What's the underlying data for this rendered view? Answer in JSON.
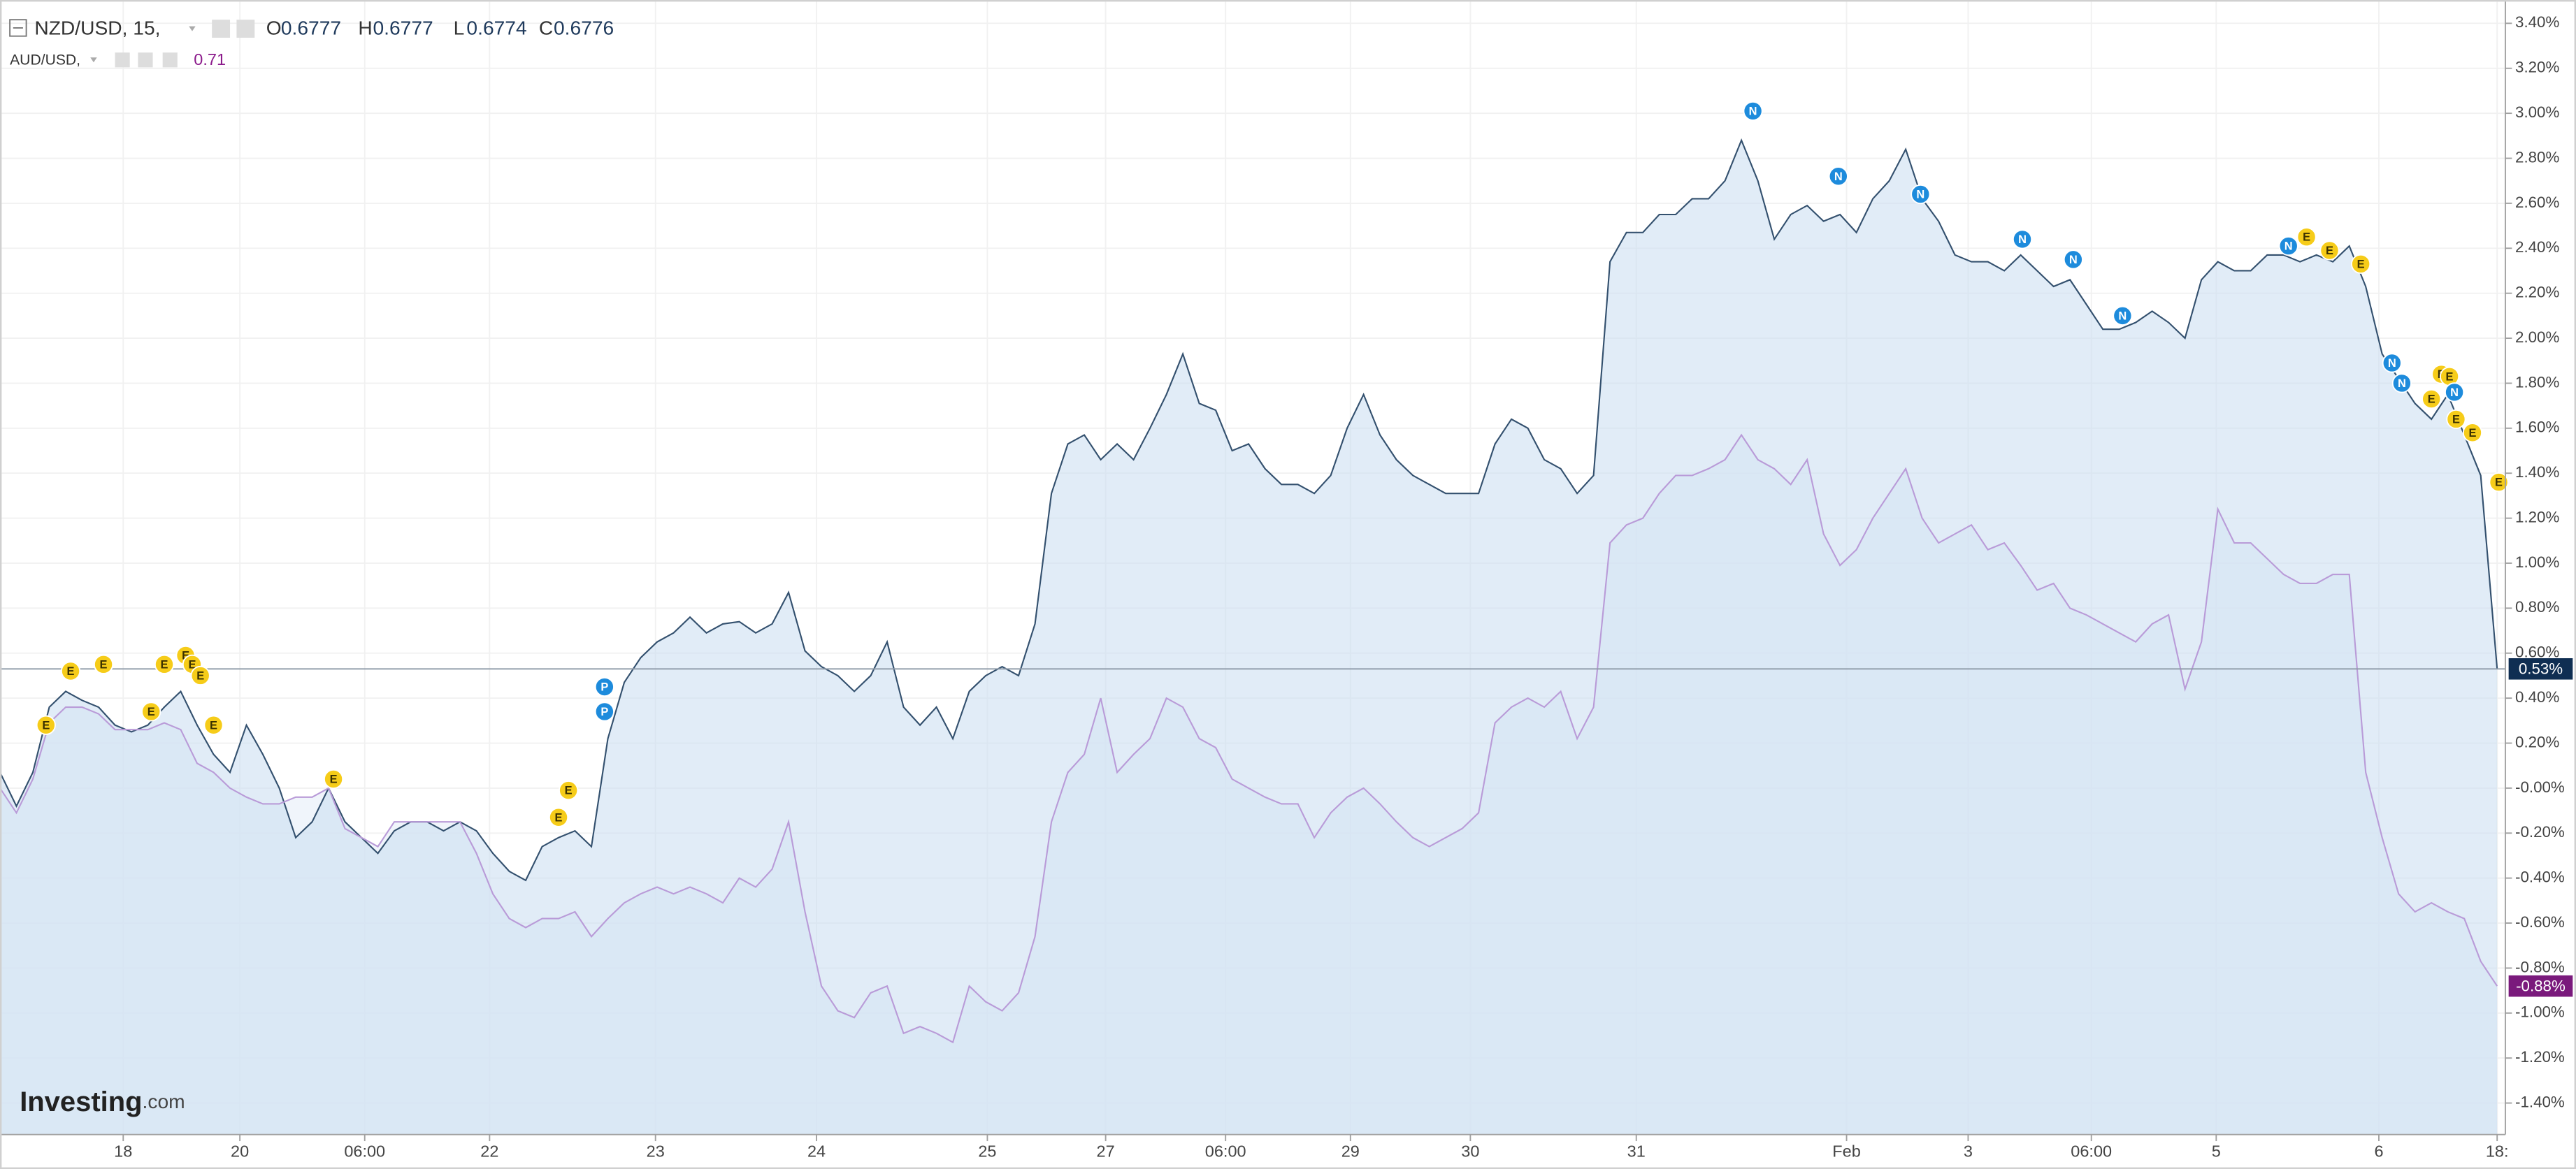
{
  "chart_data": {
    "type": "line",
    "header": {
      "ohlc": [
        {
          "key": "O",
          "value": 0.6777
        },
        {
          "key": "H",
          "value": 0.6777
        },
        {
          "key": "L",
          "value": 0.6774
        },
        {
          "key": "C",
          "value": 0.6776
        }
      ],
      "compare_value": 0.71
    },
    "logo_brand": "Investing",
    "logo_suffix": ".com",
    "x": [
      0,
      1,
      2,
      3,
      4,
      5,
      6,
      7,
      8,
      9,
      10,
      11,
      12,
      13,
      14,
      15,
      16,
      17,
      18,
      19,
      20,
      21,
      22,
      23,
      24,
      25,
      26,
      27,
      28,
      29,
      30,
      31,
      32,
      33,
      34,
      35,
      36,
      37,
      38,
      39,
      40,
      41,
      42,
      43,
      44,
      45,
      46,
      47,
      48,
      49,
      50,
      51,
      52,
      53,
      54,
      55,
      56,
      57,
      58,
      59,
      60,
      61,
      62,
      63,
      64,
      65,
      66,
      67,
      68,
      69,
      70,
      71,
      72,
      73,
      74,
      75,
      76,
      77,
      78,
      79,
      80,
      81,
      82,
      83,
      84,
      85,
      86,
      87,
      88,
      89,
      90,
      91,
      92,
      93,
      94,
      95,
      96,
      97,
      98,
      99,
      100,
      101,
      102,
      103,
      104,
      105,
      106,
      107,
      108,
      109,
      110,
      111,
      112,
      113,
      114,
      115,
      116,
      117,
      118,
      119,
      120,
      121,
      122,
      123,
      124,
      125,
      126,
      127,
      128,
      129,
      130,
      131,
      132,
      133,
      134,
      135,
      136,
      137,
      138,
      139,
      140,
      141,
      142,
      143,
      144,
      145,
      146,
      147,
      148,
      149,
      150,
      151,
      152
    ],
    "series": [
      {
        "name": "NZD/USD, 15,",
        "color": "#33506e",
        "fill": "#c9dcf0",
        "badge_color": "#0f2e52",
        "last_label": "0.53%",
        "values": [
          0.07,
          -0.08,
          0.07,
          0.36,
          0.43,
          0.39,
          0.36,
          0.28,
          0.25,
          0.28,
          0.36,
          0.43,
          0.28,
          0.15,
          0.07,
          0.28,
          0.15,
          0,
          -0.22,
          -0.15,
          0,
          -0.15,
          -0.22,
          -0.29,
          -0.19,
          -0.15,
          -0.15,
          -0.19,
          -0.15,
          -0.19,
          -0.29,
          -0.37,
          -0.41,
          -0.26,
          -0.22,
          -0.19,
          -0.26,
          0.22,
          0.47,
          0.58,
          0.65,
          0.69,
          0.76,
          0.69,
          0.73,
          0.74,
          0.69,
          0.73,
          0.87,
          0.61,
          0.54,
          0.5,
          0.43,
          0.5,
          0.65,
          0.36,
          0.28,
          0.36,
          0.22,
          0.43,
          0.5,
          0.54,
          0.5,
          0.73,
          1.31,
          1.53,
          1.57,
          1.46,
          1.53,
          1.46,
          1.6,
          1.75,
          1.93,
          1.71,
          1.68,
          1.5,
          1.53,
          1.42,
          1.35,
          1.35,
          1.31,
          1.39,
          1.6,
          1.75,
          1.57,
          1.46,
          1.39,
          1.35,
          1.31,
          1.31,
          1.31,
          1.53,
          1.64,
          1.6,
          1.46,
          1.42,
          1.31,
          1.39,
          2.34,
          2.47,
          2.47,
          2.55,
          2.55,
          2.62,
          2.62,
          2.7,
          2.88,
          2.7,
          2.44,
          2.55,
          2.59,
          2.52,
          2.55,
          2.47,
          2.62,
          2.7,
          2.84,
          2.62,
          2.52,
          2.37,
          2.34,
          2.34,
          2.3,
          2.37,
          2.3,
          2.23,
          2.26,
          2.15,
          2.04,
          2.04,
          2.07,
          2.12,
          2.07,
          2,
          2.26,
          2.34,
          2.3,
          2.3,
          2.37,
          2.37,
          2.34,
          2.37,
          2.34,
          2.41,
          2.23,
          1.93,
          1.82,
          1.71,
          1.64,
          1.75,
          1.57,
          1.39,
          0.53
        ]
      },
      {
        "name": "AUD/USD,",
        "color": "#b99bd8",
        "fill": "#e3edf8",
        "badge_color": "#7a1a7c",
        "last_label": "-0.88%",
        "values": [
          0,
          -0.11,
          0.04,
          0.29,
          0.36,
          0.36,
          0.33,
          0.26,
          0.26,
          0.26,
          0.29,
          0.26,
          0.11,
          0.07,
          0,
          -0.04,
          -0.07,
          -0.07,
          -0.04,
          -0.04,
          0,
          -0.18,
          -0.22,
          -0.26,
          -0.15,
          -0.15,
          -0.15,
          -0.15,
          -0.15,
          -0.29,
          -0.47,
          -0.58,
          -0.62,
          -0.58,
          -0.58,
          -0.55,
          -0.66,
          -0.58,
          -0.51,
          -0.47,
          -0.44,
          -0.47,
          -0.44,
          -0.47,
          -0.51,
          -0.4,
          -0.44,
          -0.36,
          -0.15,
          -0.55,
          -0.88,
          -0.99,
          -1.02,
          -0.91,
          -0.88,
          -1.09,
          -1.06,
          -1.09,
          -1.13,
          -0.88,
          -0.95,
          -0.99,
          -0.91,
          -0.66,
          -0.15,
          0.07,
          0.15,
          0.4,
          0.07,
          0.15,
          0.22,
          0.4,
          0.36,
          0.22,
          0.18,
          0.04,
          0,
          -0.04,
          -0.07,
          -0.07,
          -0.22,
          -0.11,
          -0.04,
          0,
          -0.07,
          -0.15,
          -0.22,
          -0.26,
          -0.22,
          -0.18,
          -0.11,
          0.29,
          0.36,
          0.4,
          0.36,
          0.43,
          0.22,
          0.36,
          1.09,
          1.17,
          1.2,
          1.31,
          1.39,
          1.39,
          1.42,
          1.46,
          1.57,
          1.46,
          1.42,
          1.35,
          1.46,
          1.13,
          0.99,
          1.06,
          1.2,
          1.31,
          1.42,
          1.2,
          1.09,
          1.13,
          1.17,
          1.06,
          1.09,
          0.99,
          0.88,
          0.91,
          0.8,
          0.77,
          0.73,
          0.69,
          0.65,
          0.73,
          0.77,
          0.44,
          0.65,
          1.24,
          1.09,
          1.09,
          1.02,
          0.95,
          0.91,
          0.91,
          0.95,
          0.95,
          0.07,
          -0.22,
          -0.47,
          -0.55,
          -0.51,
          -0.55,
          -0.58,
          -0.77,
          -0.88
        ]
      }
    ],
    "markers": [
      {
        "label": "E",
        "x": 2.8,
        "y": 0.28
      },
      {
        "label": "E",
        "x": 4.3,
        "y": 0.52
      },
      {
        "label": "E",
        "x": 6.3,
        "y": 0.55
      },
      {
        "label": "E",
        "x": 9.2,
        "y": 0.34
      },
      {
        "label": "E",
        "x": 10.0,
        "y": 0.55
      },
      {
        "label": "E",
        "x": 11.3,
        "y": 0.59
      },
      {
        "label": "E",
        "x": 11.7,
        "y": 0.55
      },
      {
        "label": "E",
        "x": 12.2,
        "y": 0.5
      },
      {
        "label": "E",
        "x": 13.0,
        "y": 0.28
      },
      {
        "label": "E",
        "x": 20.3,
        "y": 0.04
      },
      {
        "label": "E",
        "x": 34.0,
        "y": -0.13
      },
      {
        "label": "E",
        "x": 34.6,
        "y": -0.01
      },
      {
        "label": "P",
        "x": 36.8,
        "y": 0.45
      },
      {
        "label": "P",
        "x": 36.8,
        "y": 0.34
      },
      {
        "label": "N",
        "x": 106.7,
        "y": 3.01
      },
      {
        "label": "N",
        "x": 111.9,
        "y": 2.72
      },
      {
        "label": "N",
        "x": 116.9,
        "y": 2.64
      },
      {
        "label": "N",
        "x": 123.1,
        "y": 2.44
      },
      {
        "label": "N",
        "x": 126.2,
        "y": 2.35
      },
      {
        "label": "N",
        "x": 129.2,
        "y": 2.1
      },
      {
        "label": "N",
        "x": 139.3,
        "y": 2.41
      },
      {
        "label": "E",
        "x": 140.4,
        "y": 2.45
      },
      {
        "label": "E",
        "x": 141.8,
        "y": 2.39
      },
      {
        "label": "E",
        "x": 143.7,
        "y": 2.33
      },
      {
        "label": "N",
        "x": 145.6,
        "y": 1.89
      },
      {
        "label": "N",
        "x": 146.2,
        "y": 1.8
      },
      {
        "label": "E",
        "x": 148.0,
        "y": 1.73
      },
      {
        "label": "E",
        "x": 148.6,
        "y": 1.84
      },
      {
        "label": "E",
        "x": 149.1,
        "y": 1.83
      },
      {
        "label": "N",
        "x": 149.4,
        "y": 1.76
      },
      {
        "label": "E",
        "x": 149.5,
        "y": 1.64
      },
      {
        "label": "E",
        "x": 150.5,
        "y": 1.58
      },
      {
        "label": "E",
        "x": 152.1,
        "y": 1.36
      }
    ],
    "xlim": [
      0,
      152.5
    ],
    "xticks": [
      {
        "value": 7.5,
        "label": "18"
      },
      {
        "value": 14.6,
        "label": "20"
      },
      {
        "value": 22.2,
        "label": "06:00"
      },
      {
        "value": 29.8,
        "label": "22"
      },
      {
        "value": 39.9,
        "label": "23"
      },
      {
        "value": 49.7,
        "label": "24"
      },
      {
        "value": 60.1,
        "label": "25"
      },
      {
        "value": 67.3,
        "label": "27"
      },
      {
        "value": 74.6,
        "label": "06:00"
      },
      {
        "value": 82.2,
        "label": "29"
      },
      {
        "value": 89.5,
        "label": "30"
      },
      {
        "value": 99.6,
        "label": "31"
      },
      {
        "value": 112.4,
        "label": "Feb"
      },
      {
        "value": 119.8,
        "label": "3"
      },
      {
        "value": 127.3,
        "label": "06:00"
      },
      {
        "value": 134.9,
        "label": "5"
      },
      {
        "value": 144.8,
        "label": "6"
      },
      {
        "value": 152,
        "label": "18:"
      }
    ],
    "ylim": [
      -1.54,
      3.5
    ],
    "yticks": [
      {
        "value": 3.4,
        "label": "3.40%"
      },
      {
        "value": 3.2,
        "label": "3.20%"
      },
      {
        "value": 3.0,
        "label": "3.00%"
      },
      {
        "value": 2.8,
        "label": "2.80%"
      },
      {
        "value": 2.6,
        "label": "2.60%"
      },
      {
        "value": 2.4,
        "label": "2.40%"
      },
      {
        "value": 2.2,
        "label": "2.20%"
      },
      {
        "value": 2.0,
        "label": "2.00%"
      },
      {
        "value": 1.8,
        "label": "1.80%"
      },
      {
        "value": 1.6,
        "label": "1.60%"
      },
      {
        "value": 1.4,
        "label": "1.40%"
      },
      {
        "value": 1.2,
        "label": "1.20%"
      },
      {
        "value": 1.0,
        "label": "1.00%"
      },
      {
        "value": 0.8,
        "label": "0.80%"
      },
      {
        "value": 0.6,
        "label": "0.60%"
      },
      {
        "value": 0.4,
        "label": "0.40%"
      },
      {
        "value": 0.2,
        "label": "0.20%"
      },
      {
        "value": 0,
        "label": "-0.00%"
      },
      {
        "value": -0.2,
        "label": "-0.20%"
      },
      {
        "value": -0.4,
        "label": "-0.40%"
      },
      {
        "value": -0.6,
        "label": "-0.60%"
      },
      {
        "value": -0.8,
        "label": "-0.80%"
      },
      {
        "value": -1.0,
        "label": "-1.00%"
      },
      {
        "value": -1.2,
        "label": "-1.20%"
      },
      {
        "value": -1.4,
        "label": "-1.40%"
      }
    ],
    "grid": true
  }
}
